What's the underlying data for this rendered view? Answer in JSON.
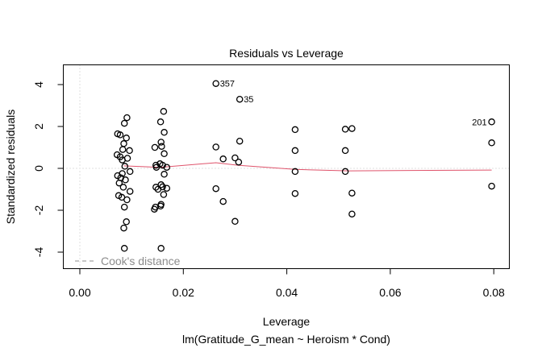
{
  "chart_data": {
    "type": "scatter",
    "title": "Residuals vs Leverage",
    "xlabel": "Leverage",
    "subtitle": "lm(Gratitude_G_mean ~ Heroism * Cond)",
    "ylabel": "Standardized residuals",
    "xlim": [
      -0.0033,
      0.0826
    ],
    "ylim": [
      -4.8,
      5.0
    ],
    "x_ticks": [
      0.0,
      0.02,
      0.04,
      0.06,
      0.08
    ],
    "x_tick_labels": [
      "0.00",
      "0.02",
      "0.04",
      "0.06",
      "0.08"
    ],
    "y_ticks": [
      4,
      2,
      0,
      -2,
      -4
    ],
    "y_tick_labels": [
      "4",
      "2",
      "0",
      "-2",
      "-4"
    ],
    "grid": false,
    "reference_lines": {
      "h": 0,
      "v": 0
    },
    "points": [
      {
        "x": 0.0091,
        "y": 2.42
      },
      {
        "x": 0.0086,
        "y": 2.15
      },
      {
        "x": 0.0073,
        "y": 1.65
      },
      {
        "x": 0.0078,
        "y": 1.6
      },
      {
        "x": 0.009,
        "y": 1.45
      },
      {
        "x": 0.0085,
        "y": 1.18
      },
      {
        "x": 0.0083,
        "y": 0.9
      },
      {
        "x": 0.0096,
        "y": 0.85
      },
      {
        "x": 0.0072,
        "y": 0.65
      },
      {
        "x": 0.0078,
        "y": 0.55
      },
      {
        "x": 0.0082,
        "y": 0.4
      },
      {
        "x": 0.0092,
        "y": 0.48
      },
      {
        "x": 0.0087,
        "y": 0.1
      },
      {
        "x": 0.0097,
        "y": -0.15
      },
      {
        "x": 0.0082,
        "y": -0.25
      },
      {
        "x": 0.0073,
        "y": -0.35
      },
      {
        "x": 0.0079,
        "y": -0.45
      },
      {
        "x": 0.0088,
        "y": -0.55
      },
      {
        "x": 0.0076,
        "y": -0.7
      },
      {
        "x": 0.0084,
        "y": -0.9
      },
      {
        "x": 0.0097,
        "y": -1.1
      },
      {
        "x": 0.0075,
        "y": -1.3
      },
      {
        "x": 0.0081,
        "y": -1.38
      },
      {
        "x": 0.0091,
        "y": -1.5
      },
      {
        "x": 0.0086,
        "y": -1.85
      },
      {
        "x": 0.009,
        "y": -2.55
      },
      {
        "x": 0.0085,
        "y": -2.85
      },
      {
        "x": 0.0086,
        "y": -3.82
      },
      {
        "x": 0.0162,
        "y": 2.72
      },
      {
        "x": 0.0156,
        "y": 2.22
      },
      {
        "x": 0.0163,
        "y": 1.72
      },
      {
        "x": 0.0157,
        "y": 1.25
      },
      {
        "x": 0.0145,
        "y": 1.0
      },
      {
        "x": 0.0158,
        "y": 1.05
      },
      {
        "x": 0.0163,
        "y": 0.7
      },
      {
        "x": 0.0147,
        "y": 0.15
      },
      {
        "x": 0.0155,
        "y": 0.22
      },
      {
        "x": 0.0148,
        "y": 0.05
      },
      {
        "x": 0.016,
        "y": 0.15
      },
      {
        "x": 0.0168,
        "y": 0.05
      },
      {
        "x": 0.0163,
        "y": -0.28
      },
      {
        "x": 0.0147,
        "y": -0.9
      },
      {
        "x": 0.0151,
        "y": -1.0
      },
      {
        "x": 0.0157,
        "y": -0.78
      },
      {
        "x": 0.016,
        "y": -0.88
      },
      {
        "x": 0.0168,
        "y": -0.95
      },
      {
        "x": 0.0162,
        "y": -1.25
      },
      {
        "x": 0.0144,
        "y": -1.95
      },
      {
        "x": 0.0146,
        "y": -1.85
      },
      {
        "x": 0.0156,
        "y": -1.8
      },
      {
        "x": 0.0157,
        "y": -1.72
      },
      {
        "x": 0.0157,
        "y": -3.82
      },
      {
        "x": 0.0263,
        "y": 4.05,
        "label": "357"
      },
      {
        "x": 0.0309,
        "y": 3.3,
        "label": "35"
      },
      {
        "x": 0.0263,
        "y": 1.02
      },
      {
        "x": 0.0309,
        "y": 1.3
      },
      {
        "x": 0.0277,
        "y": 0.45
      },
      {
        "x": 0.03,
        "y": 0.5
      },
      {
        "x": 0.0307,
        "y": 0.3
      },
      {
        "x": 0.0263,
        "y": -0.97
      },
      {
        "x": 0.0277,
        "y": -1.58
      },
      {
        "x": 0.03,
        "y": -2.53
      },
      {
        "x": 0.0416,
        "y": 1.85
      },
      {
        "x": 0.0416,
        "y": 0.85
      },
      {
        "x": 0.0416,
        "y": -0.15
      },
      {
        "x": 0.0416,
        "y": -1.2
      },
      {
        "x": 0.0513,
        "y": 1.87
      },
      {
        "x": 0.0526,
        "y": 1.9
      },
      {
        "x": 0.0513,
        "y": 0.85
      },
      {
        "x": 0.0513,
        "y": -0.15
      },
      {
        "x": 0.0526,
        "y": -1.18
      },
      {
        "x": 0.0526,
        "y": -2.18
      },
      {
        "x": 0.0796,
        "y": 2.22,
        "label": "201"
      },
      {
        "x": 0.0796,
        "y": 1.22
      },
      {
        "x": 0.0796,
        "y": -0.85
      }
    ],
    "smoother": {
      "color": "#df536b",
      "x": [
        0.0085,
        0.0155,
        0.0263,
        0.0305,
        0.0416,
        0.052,
        0.0796
      ],
      "y": [
        0.12,
        0.05,
        0.27,
        0.15,
        -0.05,
        -0.12,
        -0.08
      ]
    },
    "legend": {
      "position": "bottom-left",
      "entries": [
        "Cook's distance"
      ],
      "line_style": "dashed",
      "color": "#8c8c8c"
    }
  }
}
